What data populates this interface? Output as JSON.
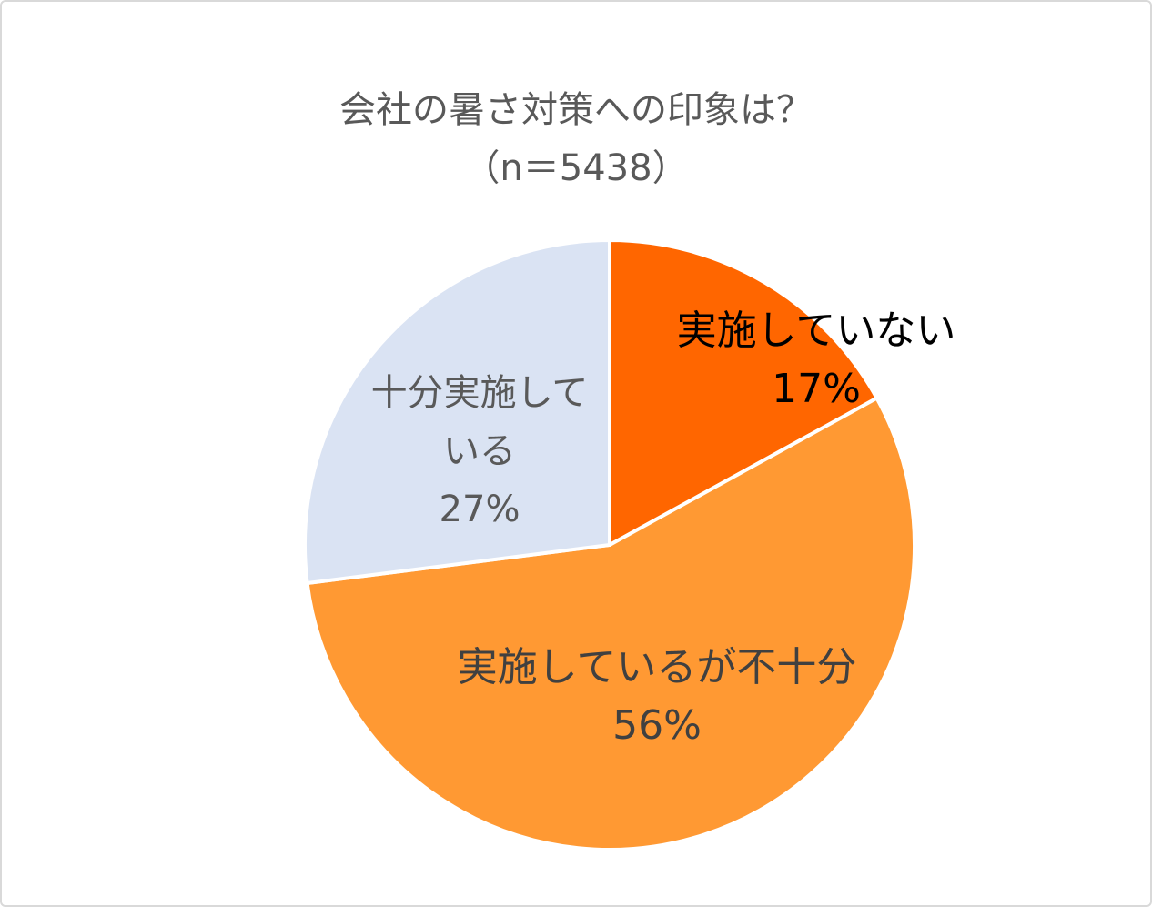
{
  "chart_data": {
    "type": "pie",
    "title": "会社の暑さ対策への印象は？",
    "subtitle": "（n＝5438）",
    "categories": [
      "実施していない",
      "実施しているが不十分",
      "十分実施している"
    ],
    "values": [
      17,
      56,
      27
    ],
    "value_labels": [
      "17%",
      "56%",
      "27%"
    ],
    "colors": [
      "#ff6600",
      "#ff9933",
      "#dae3f3"
    ]
  }
}
